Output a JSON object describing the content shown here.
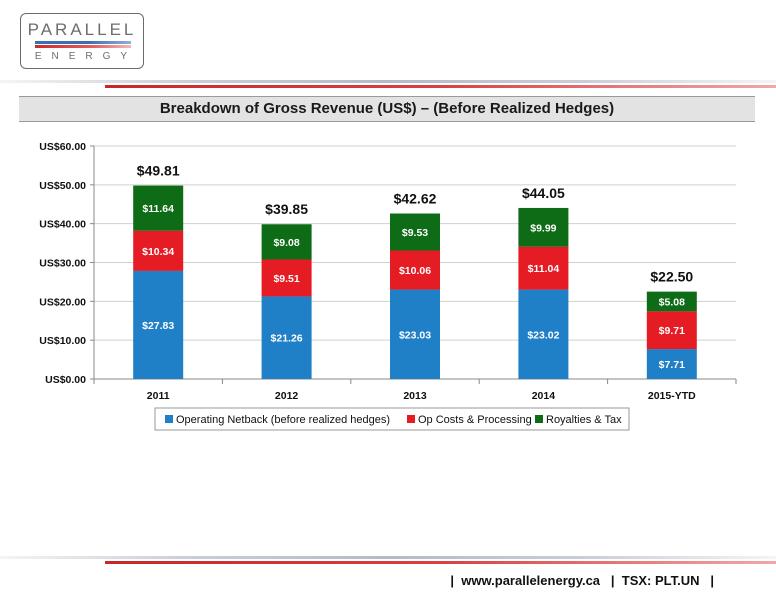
{
  "logo": {
    "word": "PARALLEL",
    "sub": "ENERGY"
  },
  "title": "Breakdown of Gross Revenue (US$) – (Before Realized Hedges)",
  "footer": {
    "sep": "|",
    "website": "www.parallelenergy.ca",
    "ticker": "TSX: PLT.UN"
  },
  "chart_data": {
    "type": "bar",
    "stacked": true,
    "categories": [
      "2011",
      "2012",
      "2013",
      "2014",
      "2015-YTD"
    ],
    "series": [
      {
        "name": "Operating Netback (before realized hedges)",
        "color": "#1f7fc7",
        "values": [
          27.83,
          21.26,
          23.03,
          23.02,
          7.71
        ],
        "labels": [
          "$27.83",
          "$21.26",
          "$23.03",
          "$23.02",
          "$7.71"
        ]
      },
      {
        "name": "Op Costs & Processing",
        "color": "#e61c24",
        "values": [
          10.34,
          9.51,
          10.06,
          11.04,
          9.71
        ],
        "labels": [
          "$10.34",
          "$9.51",
          "$10.06",
          "$11.04",
          "$9.71"
        ]
      },
      {
        "name": "Royalties & Tax",
        "color": "#0e6b16",
        "values": [
          11.64,
          9.08,
          9.53,
          9.99,
          5.08
        ],
        "labels": [
          "$11.64",
          "$9.08",
          "$9.53",
          "$9.99",
          "$5.08"
        ]
      }
    ],
    "totals": [
      "$49.81",
      "$39.85",
      "$42.62",
      "$44.05",
      "$22.50"
    ],
    "ylim": [
      0,
      60
    ],
    "yticks": [
      "US$0.00",
      "US$10.00",
      "US$20.00",
      "US$30.00",
      "US$40.00",
      "US$50.00",
      "US$60.00"
    ],
    "grid": true,
    "legend": "bottom"
  }
}
